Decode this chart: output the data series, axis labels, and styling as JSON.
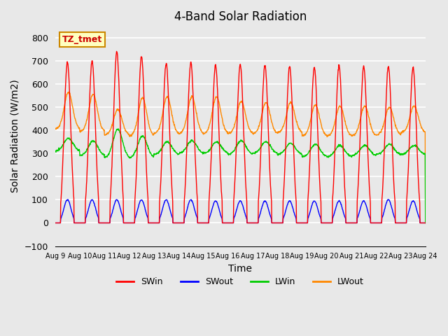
{
  "title": "4-Band Solar Radiation",
  "xlabel": "Time",
  "ylabel": "Solar Radiation (W/m2)",
  "xlim_days": [
    0,
    15
  ],
  "ylim": [
    -100,
    850
  ],
  "yticks": [
    -100,
    0,
    100,
    200,
    300,
    400,
    500,
    600,
    700,
    800
  ],
  "x_tick_labels": [
    "Aug 9",
    "Aug 10",
    "Aug 11",
    "Aug 12",
    "Aug 13",
    "Aug 14",
    "Aug 15",
    "Aug 16",
    "Aug 17",
    "Aug 18",
    "Aug 19",
    "Aug 20",
    "Aug 21",
    "Aug 22",
    "Aug 23",
    "Aug 24"
  ],
  "colors": {
    "SWin": "#ff0000",
    "SWout": "#0000ff",
    "LWin": "#00cc00",
    "LWout": "#ff8800"
  },
  "label_box": "TZ_tmet",
  "label_box_facecolor": "#ffffc0",
  "label_box_edgecolor": "#cc8800",
  "background_color": "#e8e8e8",
  "plot_bg_color": "#e8e8e8",
  "grid_color": "#ffffff",
  "n_days": 15,
  "hours_per_day": 24,
  "SWin_peak": [
    695,
    700,
    740,
    720,
    690,
    695,
    680,
    685,
    680,
    675,
    670,
    680,
    675,
    675,
    670
  ],
  "SWout_peak": [
    100,
    100,
    100,
    100,
    100,
    100,
    95,
    95,
    95,
    95,
    95,
    95,
    95,
    100,
    95
  ],
  "LWin_base": [
    310,
    290,
    280,
    280,
    295,
    300,
    300,
    295,
    300,
    295,
    285,
    285,
    290,
    295,
    295
  ],
  "LWin_peak": [
    365,
    355,
    405,
    375,
    350,
    355,
    350,
    355,
    350,
    345,
    340,
    335,
    335,
    340,
    335
  ],
  "LWout_base": [
    405,
    395,
    380,
    375,
    385,
    385,
    385,
    385,
    385,
    390,
    375,
    375,
    375,
    380,
    390
  ],
  "LWout_peak": [
    565,
    555,
    490,
    540,
    545,
    545,
    545,
    525,
    520,
    520,
    510,
    505,
    505,
    500,
    505
  ]
}
